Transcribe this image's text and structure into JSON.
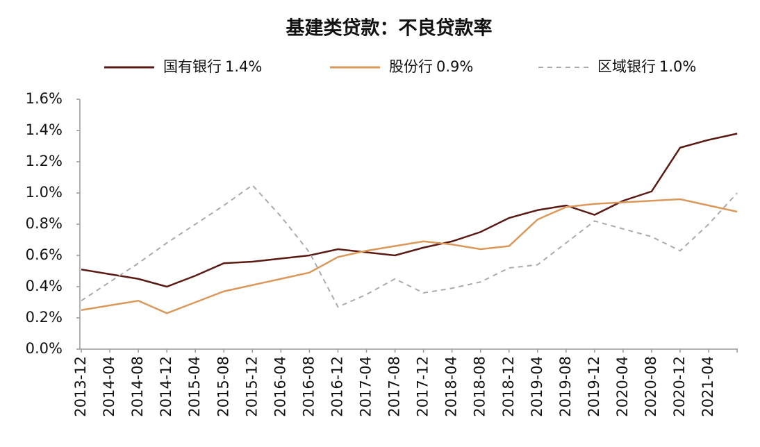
{
  "chart_data": {
    "type": "line",
    "title": "基建类贷款：不良贷款率",
    "categories": [
      "2013-12",
      "2014-04",
      "2014-08",
      "2014-12",
      "2015-04",
      "2015-08",
      "2015-12",
      "2016-04",
      "2016-08",
      "2016-12",
      "2017-04",
      "2017-08",
      "2017-12",
      "2018-04",
      "2018-08",
      "2018-12",
      "2019-04",
      "2019-08",
      "2019-12",
      "2020-04",
      "2020-08",
      "2020-12",
      "2021-04",
      null
    ],
    "series": [
      {
        "name": "国有银行",
        "legend_label": "1.4%",
        "color": "#5a1a14",
        "dash": false,
        "values": [
          0.51,
          0.48,
          0.45,
          0.4,
          0.47,
          0.55,
          0.56,
          0.58,
          0.6,
          0.64,
          0.62,
          0.6,
          0.65,
          0.69,
          0.75,
          0.84,
          0.89,
          0.92,
          0.86,
          0.95,
          1.01,
          1.29,
          1.34,
          1.38
        ]
      },
      {
        "name": "股份行",
        "legend_label": "0.9%",
        "color": "#d9985a",
        "dash": false,
        "values": [
          0.25,
          0.28,
          0.31,
          0.23,
          0.3,
          0.37,
          0.41,
          0.45,
          0.49,
          0.59,
          0.63,
          0.66,
          0.69,
          0.67,
          0.64,
          0.66,
          0.83,
          0.91,
          0.93,
          0.94,
          0.95,
          0.96,
          0.92,
          0.88
        ]
      },
      {
        "name": "区域银行",
        "legend_label": "1.0%",
        "color": "#aaaaaa",
        "dash": true,
        "values": [
          0.31,
          0.43,
          0.55,
          0.68,
          0.8,
          0.92,
          1.05,
          0.85,
          0.62,
          0.27,
          0.35,
          0.45,
          0.36,
          0.39,
          0.43,
          0.52,
          0.54,
          0.68,
          0.82,
          0.77,
          0.72,
          0.63,
          0.8,
          1.0
        ]
      }
    ],
    "ylim": [
      0,
      1.6
    ],
    "yticks": [
      {
        "value": 0,
        "label": "0.0%"
      },
      {
        "value": 0.2,
        "label": "0.2%"
      },
      {
        "value": 0.4,
        "label": "0.4%"
      },
      {
        "value": 0.6,
        "label": "0.6%"
      },
      {
        "value": 0.8,
        "label": "0.8%"
      },
      {
        "value": 1.0,
        "label": "1.0%"
      },
      {
        "value": 1.2,
        "label": "1.2%"
      },
      {
        "value": 1.4,
        "label": "1.4%"
      },
      {
        "value": 1.6,
        "label": "1.6%"
      }
    ],
    "grid": false
  }
}
